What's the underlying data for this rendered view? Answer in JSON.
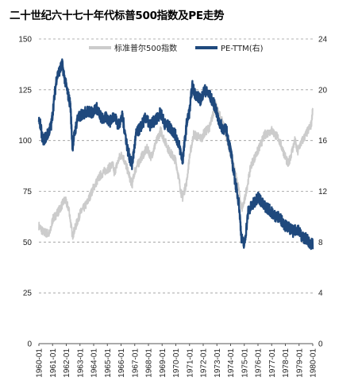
{
  "chart_data": {
    "type": "line",
    "title": "二十世纪六十七十年代标普500指数及PE走势",
    "x_tick_labels": [
      "1960-01",
      "1961-01",
      "1962-01",
      "1963-01",
      "1964-01",
      "1965-01",
      "1966-01",
      "1967-01",
      "1968-01",
      "1969-01",
      "1970-01",
      "1971-01",
      "1972-01",
      "1973-01",
      "1974-01",
      "1975-01",
      "1976-01",
      "1977-01",
      "1978-01",
      "1979-01",
      "1980-01"
    ],
    "xlim": [
      1960.0,
      1980.0
    ],
    "left_axis": {
      "ylim": [
        0,
        150
      ],
      "ticks": [
        "0",
        "25",
        "50",
        "75",
        "100",
        "125",
        "150"
      ]
    },
    "right_axis": {
      "ylim": [
        0,
        24
      ],
      "ticks": [
        "0",
        "4",
        "8",
        "12",
        "16",
        "20",
        "24"
      ]
    },
    "grid": "horizontal dashed",
    "legend_position": "top",
    "series": [
      {
        "name": "标准普尔500指数",
        "axis": "left",
        "color": "#cccccc",
        "x": [
          1960.0,
          1960.3,
          1960.8,
          1961.0,
          1961.5,
          1961.9,
          1962.2,
          1962.45,
          1962.8,
          1963.0,
          1963.5,
          1964.0,
          1964.5,
          1965.0,
          1965.4,
          1965.5,
          1965.9,
          1966.1,
          1966.5,
          1966.8,
          1967.0,
          1967.5,
          1967.9,
          1968.2,
          1968.5,
          1968.9,
          1969.0,
          1969.5,
          1970.0,
          1970.4,
          1970.5,
          1970.8,
          1971.0,
          1971.3,
          1971.9,
          1972.0,
          1972.5,
          1972.9,
          1973.0,
          1973.5,
          1974.0,
          1974.5,
          1974.8,
          1975.0,
          1975.5,
          1976.0,
          1976.5,
          1977.0,
          1977.5,
          1978.0,
          1978.2,
          1978.7,
          1978.9,
          1979.0,
          1979.5,
          1979.9,
          1980.0
        ],
        "values": [
          58,
          55,
          54,
          61,
          66,
          71,
          66,
          53,
          60,
          64,
          69,
          77,
          83,
          86,
          88,
          84,
          92,
          93,
          85,
          78,
          85,
          92,
          96,
          92,
          98,
          105,
          103,
          95,
          90,
          74,
          72,
          80,
          92,
          103,
          101,
          103,
          107,
          118,
          115,
          108,
          93,
          80,
          66,
          70,
          88,
          95,
          103,
          105,
          101,
          92,
          88,
          100,
          94,
          97,
          103,
          108,
          116
        ]
      },
      {
        "name": "PE-TTM(右)",
        "axis": "right",
        "color": "#1f497d",
        "x": [
          1960.0,
          1960.3,
          1960.6,
          1960.9,
          1961.3,
          1961.7,
          1961.95,
          1962.3,
          1962.45,
          1962.8,
          1963.1,
          1963.5,
          1963.9,
          1964.2,
          1964.6,
          1964.9,
          1965.2,
          1965.5,
          1965.8,
          1966.1,
          1966.5,
          1966.8,
          1967.1,
          1967.4,
          1967.8,
          1968.1,
          1968.5,
          1968.9,
          1969.2,
          1969.5,
          1969.9,
          1970.2,
          1970.5,
          1970.8,
          1971.0,
          1971.2,
          1971.4,
          1971.8,
          1972.1,
          1972.5,
          1972.9,
          1973.1,
          1973.4,
          1973.7,
          1974.0,
          1974.3,
          1974.6,
          1974.8,
          1975.0,
          1975.3,
          1975.6,
          1976.0,
          1976.4,
          1976.8,
          1977.2,
          1977.6,
          1978.0,
          1978.3,
          1978.6,
          1978.9,
          1979.2,
          1979.5,
          1979.8,
          1980.0
        ],
        "values": [
          17.8,
          16.0,
          16.4,
          17.2,
          21.0,
          22.0,
          20.5,
          18.8,
          15.5,
          17.7,
          18.0,
          18.3,
          18.2,
          18.6,
          17.7,
          17.8,
          17.5,
          18.0,
          17.2,
          17.9,
          15.2,
          14.0,
          16.5,
          17.0,
          17.8,
          17.2,
          17.6,
          18.2,
          17.3,
          17.1,
          16.6,
          15.8,
          14.4,
          17.4,
          18.3,
          20.3,
          19.7,
          19.2,
          20.0,
          19.5,
          18.6,
          17.6,
          17.0,
          16.8,
          15.2,
          13.0,
          11.1,
          8.3,
          7.7,
          10.5,
          10.9,
          11.6,
          10.9,
          10.6,
          10.1,
          9.9,
          9.3,
          9.1,
          8.8,
          9.1,
          8.4,
          8.3,
          7.9,
          7.8
        ]
      }
    ]
  }
}
